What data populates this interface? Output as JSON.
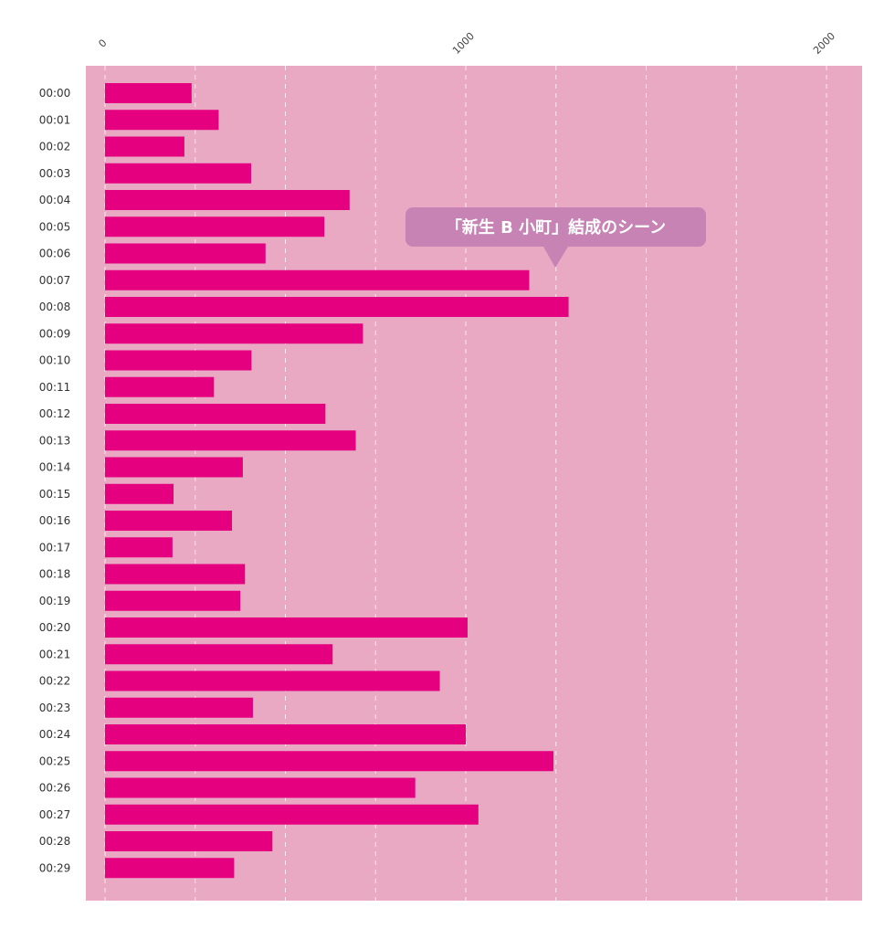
{
  "chart_data": {
    "type": "bar",
    "orientation": "horizontal",
    "title": "",
    "xlabel": "",
    "ylabel": "",
    "xlim": [
      0,
      2000
    ],
    "x_ticks": [
      "0",
      "1000",
      "2000"
    ],
    "grid": true,
    "categories": [
      "00:00",
      "00:01",
      "00:02",
      "00:03",
      "00:04",
      "00:05",
      "00:06",
      "00:07",
      "00:08",
      "00:09",
      "00:10",
      "00:11",
      "00:12",
      "00:13",
      "00:14",
      "00:15",
      "00:16",
      "00:17",
      "00:18",
      "00:19",
      "00:20",
      "00:21",
      "00:22",
      "00:23",
      "00:24",
      "00:25",
      "00:26",
      "00:27",
      "00:28",
      "00:29"
    ],
    "values": [
      240,
      315,
      220,
      405,
      678,
      608,
      445,
      1176,
      1285,
      715,
      406,
      302,
      611,
      695,
      382,
      190,
      352,
      187,
      388,
      375,
      1005,
      631,
      928,
      410,
      1000,
      1243,
      860,
      1035,
      464,
      358
    ],
    "annotation": {
      "text": "「新生 B 小町」結成のシーン",
      "x": 1250,
      "category": "00:07"
    },
    "colors": {
      "background": "#eaa9c3",
      "bar": "#e4007f",
      "grid": "#ffffff",
      "callout": "#c683b4"
    }
  }
}
